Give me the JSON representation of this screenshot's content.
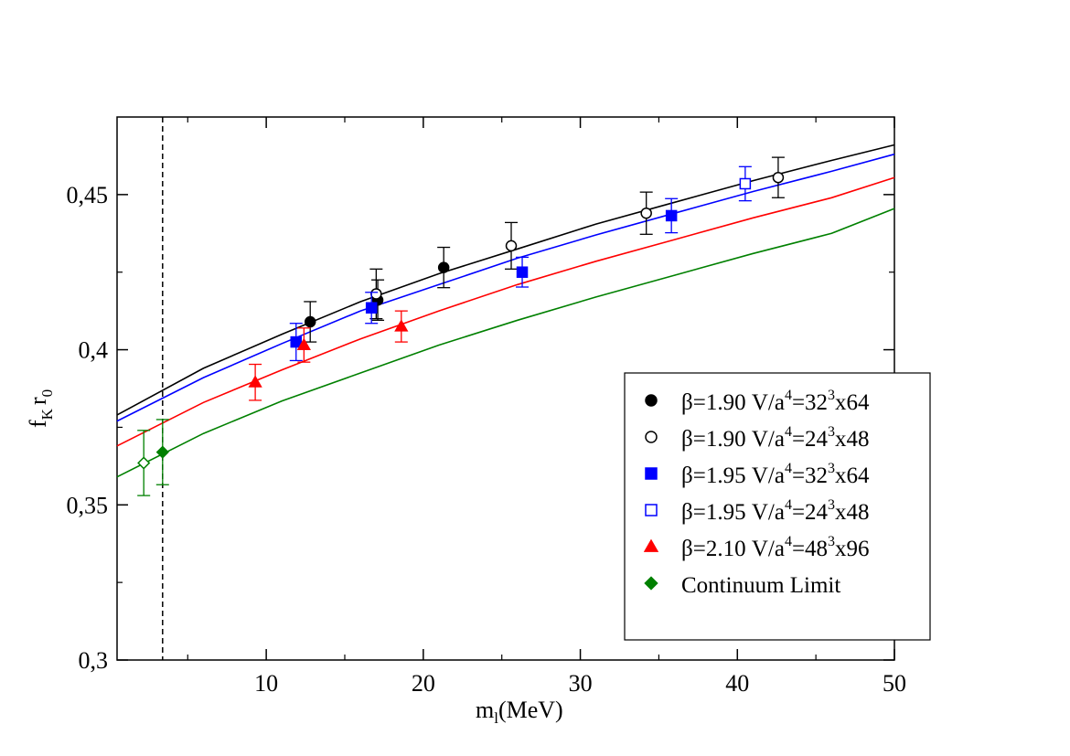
{
  "chart_data": {
    "type": "scatter",
    "title": "",
    "xlabel": {
      "main": "m",
      "sub": "l",
      "tail": "(MeV)"
    },
    "ylabel": {
      "p1": "f",
      "s1": "K",
      "p2": "r",
      "s2": "0"
    },
    "xlim": [
      0.5,
      50
    ],
    "ylim": [
      0.3,
      0.475
    ],
    "xticks": [
      10,
      20,
      30,
      40,
      50
    ],
    "xtick_labels": [
      "10",
      "20",
      "30",
      "40",
      "50"
    ],
    "yticks": [
      0.3,
      0.35,
      0.4,
      0.45
    ],
    "ytick_labels": [
      "0,3",
      "0,35",
      "0,4",
      "0,45"
    ],
    "grid": false,
    "vertical_line_x": 3.4,
    "legend_position": "bottom-right",
    "series": [
      {
        "color": "#000000",
        "marker": "circle",
        "filled": true,
        "legend": {
          "beta": "β=1.90",
          "vol": "V/a",
          "exp1": "4",
          "eq": "=32",
          "exp2": "3",
          "tail": "x64"
        },
        "points": [
          {
            "x": 12.8,
            "y": 0.409,
            "err": 0.0065
          },
          {
            "x": 17.1,
            "y": 0.416,
            "err": 0.0065
          },
          {
            "x": 21.3,
            "y": 0.4265,
            "err": 0.0065
          }
        ],
        "fit": {
          "x": [
            0.5,
            6,
            11,
            16,
            21,
            26,
            31,
            36,
            41,
            46,
            50
          ],
          "y": [
            0.379,
            0.394,
            0.405,
            0.4155,
            0.4245,
            0.4325,
            0.4405,
            0.4475,
            0.4545,
            0.461,
            0.466
          ]
        }
      },
      {
        "color": "#000000",
        "marker": "circle",
        "filled": false,
        "legend": {
          "beta": "β=1.90",
          "vol": "V/a",
          "exp1": "4",
          "eq": "=24",
          "exp2": "3",
          "tail": "x48"
        },
        "points": [
          {
            "x": 17.0,
            "y": 0.418,
            "err": 0.008
          },
          {
            "x": 25.6,
            "y": 0.4335,
            "err": 0.0075
          },
          {
            "x": 34.2,
            "y": 0.444,
            "err": 0.0068
          },
          {
            "x": 42.6,
            "y": 0.4555,
            "err": 0.0065
          }
        ]
      },
      {
        "color": "#0000ff",
        "marker": "square",
        "filled": true,
        "legend": {
          "beta": "β=1.95",
          "vol": "V/a",
          "exp1": "4",
          "eq": "=32",
          "exp2": "3",
          "tail": "x64"
        },
        "points": [
          {
            "x": 11.9,
            "y": 0.4025,
            "err": 0.006
          },
          {
            "x": 16.7,
            "y": 0.4135,
            "err": 0.005
          },
          {
            "x": 26.3,
            "y": 0.425,
            "err": 0.0048
          },
          {
            "x": 35.8,
            "y": 0.4432,
            "err": 0.0055
          }
        ],
        "fit": {
          "x": [
            0.5,
            6,
            11,
            16,
            21,
            26,
            31,
            36,
            41,
            46,
            50
          ],
          "y": [
            0.377,
            0.391,
            0.402,
            0.4125,
            0.421,
            0.4295,
            0.437,
            0.444,
            0.451,
            0.4575,
            0.463
          ]
        }
      },
      {
        "color": "#0000ff",
        "marker": "square",
        "filled": false,
        "legend": {
          "beta": "β=1.95",
          "vol": "V/a",
          "exp1": "4",
          "eq": "=24",
          "exp2": "3",
          "tail": "x48"
        },
        "points": [
          {
            "x": 40.5,
            "y": 0.4535,
            "err": 0.0055
          }
        ]
      },
      {
        "color": "#ff0000",
        "marker": "triangle",
        "filled": true,
        "legend": {
          "beta": "β=2.10",
          "vol": "V/a",
          "exp1": "4",
          "eq": "=48",
          "exp2": "3",
          "tail": "x96"
        },
        "points": [
          {
            "x": 9.3,
            "y": 0.3895,
            "err": 0.0058
          },
          {
            "x": 12.4,
            "y": 0.4015,
            "err": 0.0055
          },
          {
            "x": 18.6,
            "y": 0.4075,
            "err": 0.005
          }
        ],
        "fit": {
          "x": [
            0.5,
            6,
            11,
            16,
            21,
            26,
            31,
            36,
            41,
            46,
            50
          ],
          "y": [
            0.369,
            0.383,
            0.3935,
            0.4035,
            0.4125,
            0.421,
            0.4285,
            0.4355,
            0.4425,
            0.449,
            0.4555
          ]
        }
      },
      {
        "color": "#008000",
        "marker": "diamond",
        "filled": true,
        "legend": {
          "beta": "",
          "vol": "",
          "exp1": "",
          "eq": "",
          "exp2": "",
          "tail": "Continuum Limit"
        },
        "points": [
          {
            "x": 3.4,
            "y": 0.367,
            "err": 0.0105
          }
        ],
        "fit": {
          "x": [
            0.5,
            6,
            11,
            16,
            21,
            26,
            31,
            36,
            41,
            46,
            50
          ],
          "y": [
            0.359,
            0.373,
            0.3835,
            0.3925,
            0.4015,
            0.4095,
            0.417,
            0.424,
            0.431,
            0.4375,
            0.4455
          ]
        }
      },
      {
        "color": "#008000",
        "marker": "diamond",
        "filled": false,
        "legend": null,
        "points": [
          {
            "x": 2.2,
            "y": 0.3635,
            "err": 0.0105
          }
        ]
      }
    ]
  }
}
